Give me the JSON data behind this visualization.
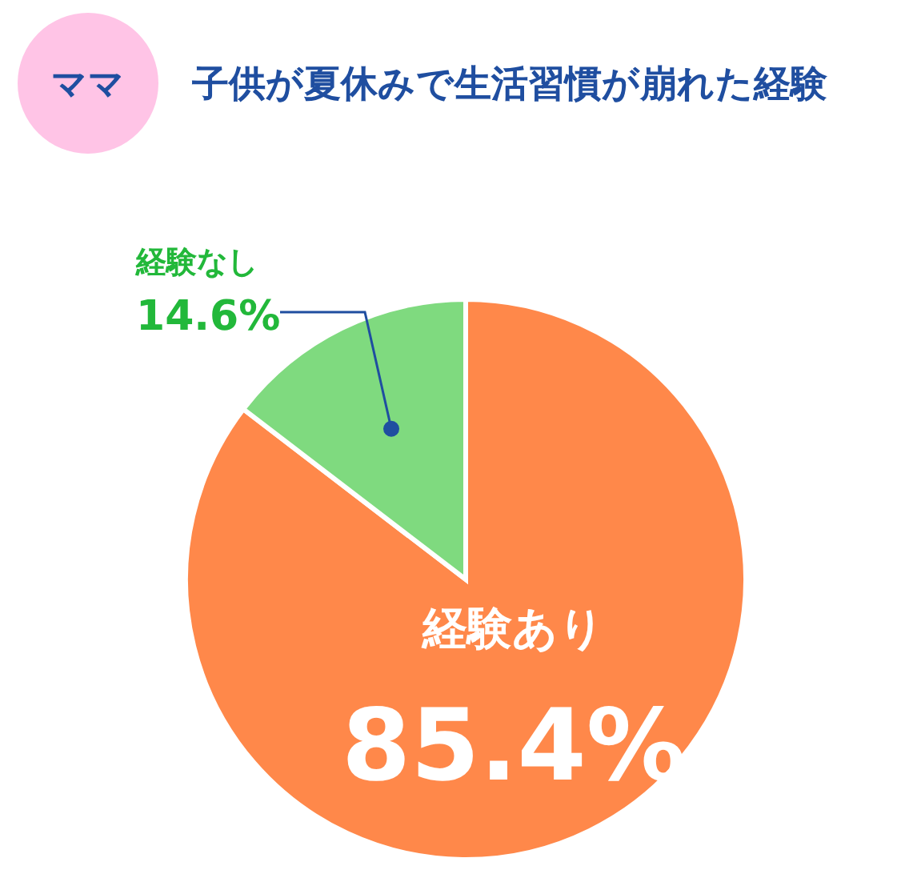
{
  "chart_data": {
    "type": "pie",
    "title": "子供が夏休みで生活習慣が崩れた経験",
    "subtitle": "ママ",
    "categories": [
      "経験あり",
      "経験なし"
    ],
    "values": [
      85.4,
      14.6
    ],
    "colors": [
      "#ff884a",
      "#7fda7f"
    ],
    "value_labels": [
      "85.4%",
      "14.6%"
    ]
  }
}
